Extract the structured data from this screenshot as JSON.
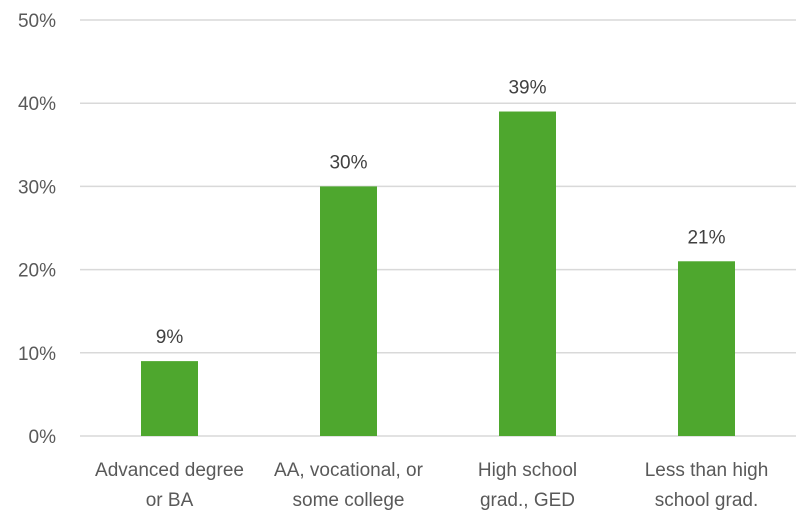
{
  "chart_data": {
    "type": "bar",
    "categories": [
      [
        "Advanced degree",
        "or BA"
      ],
      [
        "AA, vocational, or",
        "some college"
      ],
      [
        "High school",
        "grad., GED"
      ],
      [
        "Less than high",
        "school grad."
      ]
    ],
    "values": [
      0.09,
      0.3,
      0.39,
      0.21
    ],
    "data_labels": [
      "9%",
      "30%",
      "39%",
      "21%"
    ],
    "ylim": [
      0,
      0.5
    ],
    "yticks": [
      0,
      0.1,
      0.2,
      0.3,
      0.4,
      0.5
    ],
    "ytick_labels": [
      "0%",
      "10%",
      "20%",
      "30%",
      "40%",
      "50%"
    ],
    "grid": true,
    "legend": "none",
    "bar_color": "#4ea72e",
    "title": "",
    "xlabel": "",
    "ylabel": ""
  }
}
